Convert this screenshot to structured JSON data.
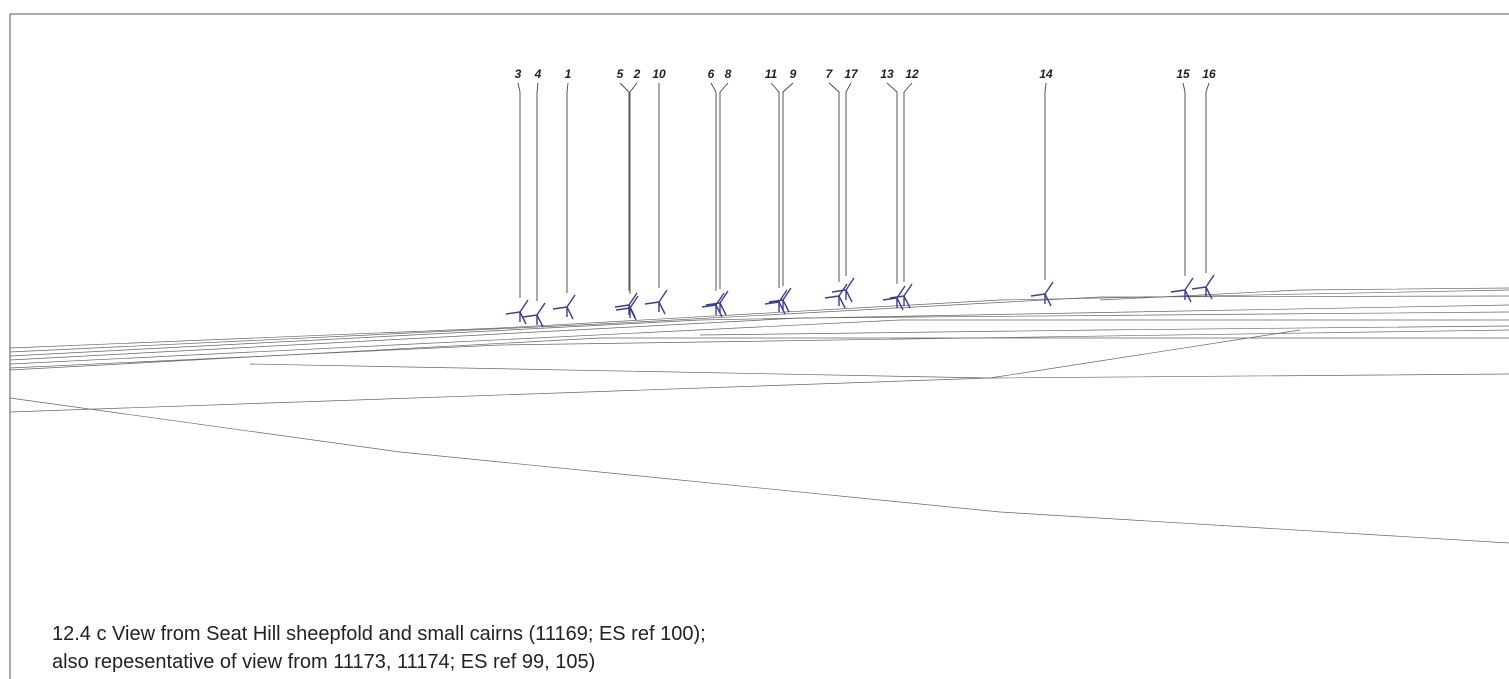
{
  "turbine_labels": [
    "3",
    "4",
    "1",
    "5",
    "2",
    "10",
    "6",
    "8",
    "11",
    "9",
    "7",
    "17",
    "13",
    "12",
    "14",
    "15",
    "16"
  ],
  "caption": {
    "line1": "12.4 c   View from Seat Hill sheepfold and small cairns (11169; ES ref 100);",
    "line2": "also repesentative of view from 11173, 11174; ES ref 99, 105)"
  }
}
